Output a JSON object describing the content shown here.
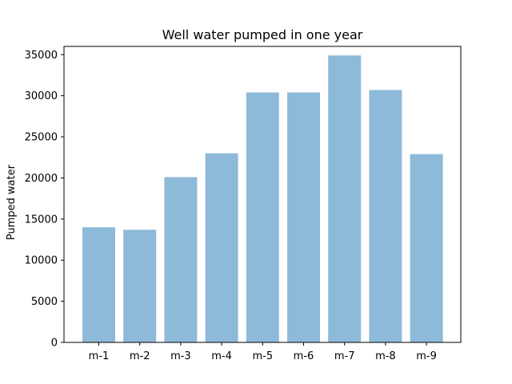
{
  "chart_data": {
    "type": "bar",
    "title": "Well water pumped in one year",
    "xlabel": "",
    "ylabel": "Pumped water",
    "categories": [
      "m-1",
      "m-2",
      "m-3",
      "m-4",
      "m-5",
      "m-6",
      "m-7",
      "m-8",
      "m-9"
    ],
    "values": [
      14000,
      13700,
      20100,
      23000,
      30400,
      30400,
      34900,
      30700,
      22900
    ],
    "ylim": [
      0,
      36000
    ],
    "yticks": [
      0,
      5000,
      10000,
      15000,
      20000,
      25000,
      30000,
      35000
    ],
    "grid": false,
    "legend": "none",
    "bar_color": "#8ebad9",
    "axis_color": "#000000"
  }
}
